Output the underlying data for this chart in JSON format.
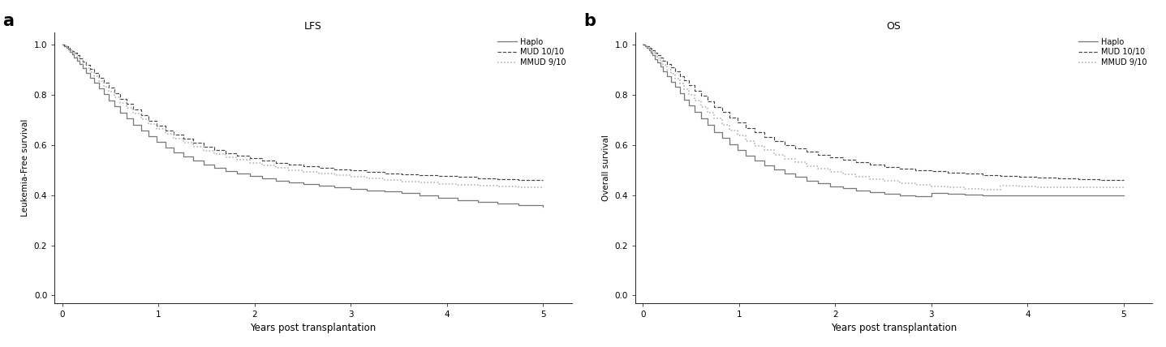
{
  "panel_a_title": "LFS",
  "panel_b_title": "OS",
  "panel_a_label": "a",
  "panel_b_label": "b",
  "ylabel_a": "Leukemia-Free survival",
  "ylabel_b": "Overall survival",
  "xlabel": "Years post transplantation",
  "yticks": [
    0.0,
    0.2,
    0.4,
    0.6,
    0.8,
    1.0
  ],
  "xticks": [
    0,
    1,
    2,
    3,
    4,
    5
  ],
  "ylim": [
    -0.03,
    1.05
  ],
  "xlim": [
    -0.08,
    5.3
  ],
  "legend_labels": [
    "Haplo",
    "MUD 10/10",
    "MMUD 9/10"
  ],
  "haplo_color": "#777777",
  "mud_color": "#444444",
  "mmud_color": "#aaaaaa",
  "background_color": "#ffffff",
  "panel_label_fontsize": 15,
  "title_fontsize": 9,
  "tick_fontsize": 7.5,
  "ylabel_fontsize": 7.5,
  "xlabel_fontsize": 8.5,
  "legend_fontsize": 7,
  "lfs_haplo_x": [
    0,
    0.02,
    0.04,
    0.06,
    0.08,
    0.1,
    0.12,
    0.15,
    0.18,
    0.21,
    0.25,
    0.29,
    0.33,
    0.38,
    0.43,
    0.48,
    0.54,
    0.6,
    0.67,
    0.74,
    0.82,
    0.9,
    0.98,
    1.07,
    1.16,
    1.26,
    1.36,
    1.47,
    1.58,
    1.7,
    1.82,
    1.95,
    2.08,
    2.22,
    2.36,
    2.51,
    2.67,
    2.83,
    3.0,
    3.17,
    3.35,
    3.53,
    3.72,
    3.91,
    4.11,
    4.32,
    4.53,
    4.75,
    5.0
  ],
  "lfs_haplo_y": [
    1.0,
    0.995,
    0.988,
    0.98,
    0.971,
    0.961,
    0.95,
    0.937,
    0.922,
    0.906,
    0.888,
    0.869,
    0.848,
    0.826,
    0.803,
    0.779,
    0.755,
    0.73,
    0.705,
    0.681,
    0.657,
    0.634,
    0.612,
    0.591,
    0.572,
    0.554,
    0.538,
    0.523,
    0.509,
    0.497,
    0.486,
    0.476,
    0.467,
    0.459,
    0.451,
    0.444,
    0.438,
    0.432,
    0.426,
    0.42,
    0.414,
    0.408,
    0.4,
    0.391,
    0.381,
    0.373,
    0.366,
    0.36,
    0.355
  ],
  "lfs_mud_x": [
    0,
    0.02,
    0.04,
    0.06,
    0.08,
    0.1,
    0.12,
    0.15,
    0.18,
    0.21,
    0.25,
    0.29,
    0.33,
    0.38,
    0.43,
    0.48,
    0.54,
    0.6,
    0.67,
    0.74,
    0.82,
    0.9,
    0.98,
    1.07,
    1.16,
    1.26,
    1.36,
    1.47,
    1.58,
    1.7,
    1.82,
    1.95,
    2.08,
    2.22,
    2.36,
    2.51,
    2.67,
    2.83,
    3.0,
    3.17,
    3.35,
    3.53,
    3.72,
    3.91,
    4.11,
    4.32,
    4.53,
    4.75,
    5.0
  ],
  "lfs_mud_y": [
    1.0,
    0.997,
    0.993,
    0.988,
    0.982,
    0.975,
    0.967,
    0.957,
    0.946,
    0.933,
    0.919,
    0.904,
    0.887,
    0.868,
    0.848,
    0.828,
    0.807,
    0.785,
    0.763,
    0.741,
    0.719,
    0.698,
    0.678,
    0.659,
    0.641,
    0.624,
    0.608,
    0.594,
    0.58,
    0.568,
    0.557,
    0.547,
    0.538,
    0.53,
    0.522,
    0.515,
    0.509,
    0.503,
    0.498,
    0.493,
    0.488,
    0.484,
    0.48,
    0.476,
    0.472,
    0.468,
    0.465,
    0.462,
    0.46
  ],
  "lfs_mmud_x": [
    0,
    0.02,
    0.04,
    0.06,
    0.08,
    0.1,
    0.12,
    0.15,
    0.18,
    0.21,
    0.25,
    0.29,
    0.33,
    0.38,
    0.43,
    0.48,
    0.54,
    0.6,
    0.67,
    0.74,
    0.82,
    0.9,
    0.98,
    1.07,
    1.16,
    1.26,
    1.36,
    1.47,
    1.58,
    1.7,
    1.82,
    1.95,
    2.08,
    2.22,
    2.36,
    2.51,
    2.67,
    2.83,
    3.0,
    3.17,
    3.35,
    3.53,
    3.72,
    3.91,
    4.11,
    4.32,
    4.53,
    4.75,
    5.0
  ],
  "lfs_mmud_y": [
    1.0,
    0.996,
    0.991,
    0.985,
    0.978,
    0.97,
    0.961,
    0.95,
    0.937,
    0.923,
    0.908,
    0.891,
    0.873,
    0.854,
    0.834,
    0.813,
    0.791,
    0.769,
    0.747,
    0.725,
    0.704,
    0.683,
    0.663,
    0.644,
    0.626,
    0.609,
    0.593,
    0.578,
    0.565,
    0.552,
    0.54,
    0.529,
    0.519,
    0.51,
    0.501,
    0.493,
    0.486,
    0.479,
    0.472,
    0.466,
    0.46,
    0.455,
    0.45,
    0.446,
    0.442,
    0.439,
    0.436,
    0.433,
    0.43
  ],
  "os_haplo_x": [
    0,
    0.02,
    0.04,
    0.06,
    0.08,
    0.1,
    0.12,
    0.15,
    0.18,
    0.21,
    0.25,
    0.29,
    0.33,
    0.38,
    0.43,
    0.48,
    0.54,
    0.6,
    0.67,
    0.74,
    0.82,
    0.9,
    0.98,
    1.07,
    1.16,
    1.26,
    1.36,
    1.47,
    1.58,
    1.7,
    1.82,
    1.95,
    2.08,
    2.22,
    2.36,
    2.51,
    2.67,
    2.83,
    3.0,
    3.17,
    3.35,
    3.53,
    3.72,
    3.91,
    4.11,
    4.32,
    4.53,
    4.75,
    5.0
  ],
  "os_haplo_y": [
    1.0,
    0.995,
    0.988,
    0.979,
    0.969,
    0.957,
    0.944,
    0.929,
    0.912,
    0.894,
    0.874,
    0.853,
    0.831,
    0.807,
    0.782,
    0.757,
    0.731,
    0.705,
    0.679,
    0.653,
    0.628,
    0.604,
    0.581,
    0.559,
    0.539,
    0.52,
    0.503,
    0.487,
    0.472,
    0.459,
    0.447,
    0.436,
    0.427,
    0.419,
    0.412,
    0.406,
    0.4,
    0.395,
    0.41,
    0.406,
    0.402,
    0.4,
    0.4,
    0.4,
    0.4,
    0.4,
    0.4,
    0.4,
    0.4
  ],
  "os_mud_x": [
    0,
    0.02,
    0.04,
    0.06,
    0.08,
    0.1,
    0.12,
    0.15,
    0.18,
    0.21,
    0.25,
    0.29,
    0.33,
    0.38,
    0.43,
    0.48,
    0.54,
    0.6,
    0.67,
    0.74,
    0.82,
    0.9,
    0.98,
    1.07,
    1.16,
    1.26,
    1.36,
    1.47,
    1.58,
    1.7,
    1.82,
    1.95,
    2.08,
    2.22,
    2.36,
    2.51,
    2.67,
    2.83,
    3.0,
    3.17,
    3.35,
    3.53,
    3.72,
    3.91,
    4.11,
    4.32,
    4.53,
    4.75,
    5.0
  ],
  "os_mud_y": [
    1.0,
    0.997,
    0.993,
    0.989,
    0.983,
    0.977,
    0.969,
    0.96,
    0.949,
    0.937,
    0.924,
    0.909,
    0.893,
    0.876,
    0.857,
    0.838,
    0.817,
    0.796,
    0.774,
    0.752,
    0.731,
    0.709,
    0.689,
    0.669,
    0.65,
    0.633,
    0.616,
    0.601,
    0.586,
    0.573,
    0.561,
    0.55,
    0.54,
    0.531,
    0.522,
    0.514,
    0.507,
    0.501,
    0.495,
    0.49,
    0.485,
    0.481,
    0.477,
    0.473,
    0.47,
    0.467,
    0.464,
    0.462,
    0.46
  ],
  "os_mmud_x": [
    0,
    0.02,
    0.04,
    0.06,
    0.08,
    0.1,
    0.12,
    0.15,
    0.18,
    0.21,
    0.25,
    0.29,
    0.33,
    0.38,
    0.43,
    0.48,
    0.54,
    0.6,
    0.67,
    0.74,
    0.82,
    0.9,
    0.98,
    1.07,
    1.16,
    1.26,
    1.36,
    1.47,
    1.58,
    1.7,
    1.82,
    1.95,
    2.08,
    2.22,
    2.36,
    2.51,
    2.67,
    2.83,
    3.0,
    3.17,
    3.35,
    3.53,
    3.72,
    3.91,
    4.11,
    4.32,
    4.53,
    4.75,
    5.0
  ],
  "os_mmud_y": [
    1.0,
    0.996,
    0.991,
    0.985,
    0.977,
    0.969,
    0.959,
    0.947,
    0.934,
    0.919,
    0.902,
    0.884,
    0.865,
    0.844,
    0.822,
    0.799,
    0.776,
    0.752,
    0.728,
    0.705,
    0.682,
    0.659,
    0.638,
    0.617,
    0.598,
    0.579,
    0.562,
    0.546,
    0.531,
    0.517,
    0.505,
    0.493,
    0.483,
    0.473,
    0.464,
    0.456,
    0.449,
    0.442,
    0.436,
    0.431,
    0.426,
    0.422,
    0.439,
    0.436,
    0.433,
    0.431,
    0.43,
    0.43,
    0.43
  ]
}
